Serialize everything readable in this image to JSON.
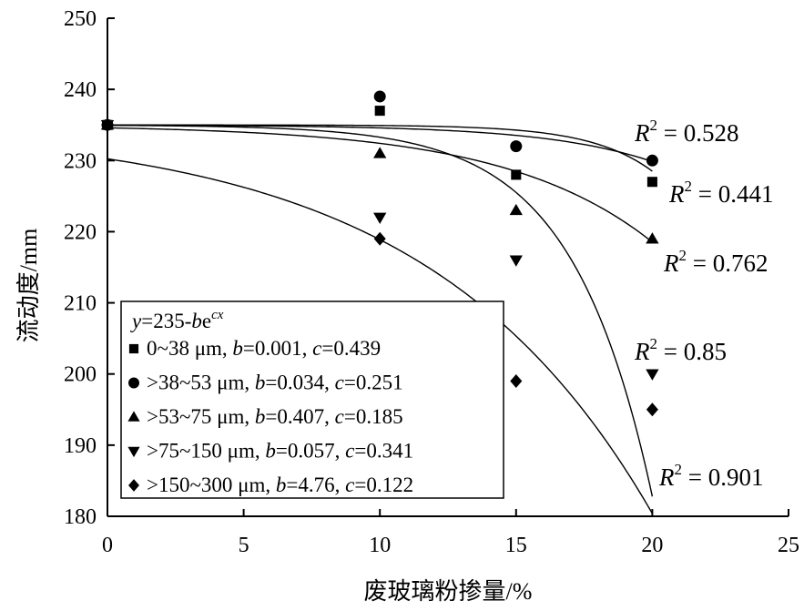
{
  "chart_data": {
    "type": "scatter",
    "title": "",
    "xlabel": "废玻璃粉掺量/%",
    "ylabel": "流动度/mm",
    "xlim": [
      0,
      25
    ],
    "ylim": [
      180,
      250
    ],
    "xticks": [
      0,
      5,
      10,
      15,
      20,
      25
    ],
    "yticks": [
      180,
      190,
      200,
      210,
      220,
      230,
      240,
      250
    ],
    "legend_position": "lower-left",
    "legend_title": "y=235-be^cx",
    "legend_title_parts": {
      "y": "y",
      "eq": "=235-",
      "b": "b",
      "e": "e",
      "cx": "cx"
    },
    "series": [
      {
        "name": "0~38 μm, b=0.001, c=0.439",
        "name_parts": {
          "range": "0~38 μm, ",
          "b_val": "0.001",
          "c_val": "0.439"
        },
        "marker": "square",
        "b": 0.001,
        "c": 0.439,
        "x": [
          0,
          10,
          15,
          20
        ],
        "y": [
          235,
          237,
          228,
          227
        ],
        "r2_value": "0.441"
      },
      {
        "name": ">38~53 μm, b=0.034, c=0.251",
        "name_parts": {
          "range": ">38~53 μm, ",
          "b_val": "0.034",
          "c_val": "0.251"
        },
        "marker": "circle",
        "b": 0.034,
        "c": 0.251,
        "x": [
          0,
          10,
          15,
          20
        ],
        "y": [
          235,
          239,
          232,
          230
        ],
        "r2_value": "0.528"
      },
      {
        "name": ">53~75 μm, b=0.407, c=0.185",
        "name_parts": {
          "range": ">53~75 μm, ",
          "b_val": "0.407",
          "c_val": "0.185"
        },
        "marker": "triangle-up",
        "b": 0.407,
        "c": 0.185,
        "x": [
          0,
          10,
          15,
          20
        ],
        "y": [
          235,
          231,
          223,
          219
        ],
        "r2_value": "0.762"
      },
      {
        "name": ">75~150 μm, b=0.057, c=0.341",
        "name_parts": {
          "range": ">75~150 μm, ",
          "b_val": "0.057",
          "c_val": "0.341"
        },
        "marker": "triangle-down",
        "b": 0.057,
        "c": 0.341,
        "x": [
          0,
          10,
          15,
          20
        ],
        "y": [
          235,
          222,
          216,
          200
        ],
        "r2_value": "0.85"
      },
      {
        "name": ">150~300 μm, b=4.76, c=0.122",
        "name_parts": {
          "range": ">150~300 μm, ",
          "b_val": "4.76",
          "c_val": "0.122"
        },
        "marker": "diamond",
        "b": 4.76,
        "c": 0.122,
        "x": [
          0,
          10,
          15,
          20
        ],
        "y": [
          235,
          219,
          199,
          195
        ],
        "r2_value": "0.901"
      }
    ]
  }
}
